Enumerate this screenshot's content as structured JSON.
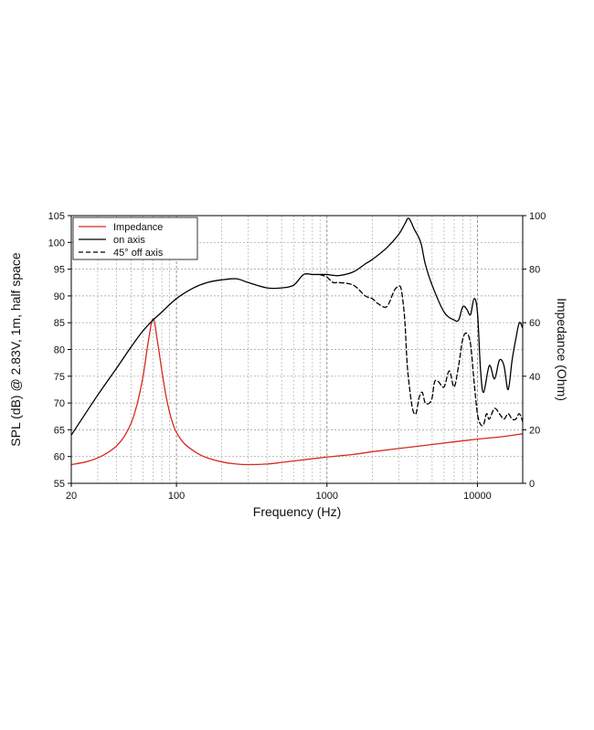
{
  "chart_data": {
    "type": "line",
    "xscale": "log",
    "xlabel": "Frequency (Hz)",
    "ylabel_left": "SPL (dB) @ 2.83V, 1m, half space",
    "ylabel_right": "Impedance (Ohm)",
    "xlim": [
      20,
      20000
    ],
    "ylim_left": [
      55,
      105
    ],
    "ylim_right": [
      0,
      100
    ],
    "x_ticks": [
      20,
      100,
      1000,
      10000
    ],
    "x_tick_labels": [
      "20",
      "100",
      "1000",
      "10000"
    ],
    "y_left_ticks": [
      "55",
      "60",
      "65",
      "70",
      "75",
      "80",
      "85",
      "90",
      "95",
      "100",
      "105"
    ],
    "y_right_ticks": [
      "0",
      "20",
      "40",
      "60",
      "80",
      "100"
    ],
    "grid": true,
    "legend": [
      {
        "label": "Impedance",
        "color": "#d42a1e",
        "dash": "solid"
      },
      {
        "label": "on axis",
        "color": "#000000",
        "dash": "solid"
      },
      {
        "label": "45° off axis",
        "color": "#000000",
        "dash": "dashed"
      }
    ],
    "series": [
      {
        "name": "Impedance",
        "axis": "right",
        "color": "#d42a1e",
        "x": [
          20,
          25,
          30,
          35,
          40,
          45,
          50,
          55,
          60,
          65,
          70,
          75,
          80,
          85,
          90,
          95,
          100,
          110,
          120,
          140,
          160,
          200,
          250,
          300,
          400,
          500,
          700,
          1000,
          1500,
          2000,
          3000,
          5000,
          7000,
          10000,
          15000,
          20000
        ],
        "y": [
          7.0,
          8.0,
          9.5,
          11.5,
          14.0,
          17.5,
          22.5,
          30.0,
          40.0,
          53.0,
          61.5,
          52.5,
          42.0,
          33.0,
          26.5,
          22.0,
          19.0,
          15.5,
          13.5,
          11.0,
          9.5,
          8.0,
          7.2,
          7.0,
          7.2,
          7.8,
          8.8,
          9.8,
          10.8,
          11.8,
          13.0,
          14.5,
          15.5,
          16.5,
          17.5,
          18.5
        ]
      },
      {
        "name": "on axis",
        "axis": "left",
        "color": "#000000",
        "x": [
          20,
          30,
          40,
          50,
          60,
          70,
          80,
          100,
          130,
          160,
          200,
          250,
          300,
          400,
          500,
          600,
          700,
          800,
          900,
          1000,
          1200,
          1500,
          1800,
          2000,
          2500,
          3000,
          3300,
          3500,
          3800,
          4200,
          4500,
          5000,
          6000,
          7000,
          7500,
          8000,
          8500,
          9000,
          9500,
          10000,
          10500,
          11000,
          12000,
          13000,
          14000,
          15000,
          16000,
          17000,
          18000,
          19000,
          20000
        ],
        "y": [
          64,
          71.5,
          76.5,
          80.5,
          83.5,
          85.5,
          87,
          89.5,
          91.5,
          92.5,
          93,
          93.2,
          92.5,
          91.5,
          91.5,
          92,
          94,
          94,
          94,
          94,
          93.8,
          94.5,
          96,
          96.8,
          99,
          101.5,
          103.5,
          104.5,
          102.5,
          100,
          96,
          92,
          87,
          85.5,
          85.5,
          88,
          87.5,
          86.5,
          89.5,
          87,
          76,
          72,
          77,
          74.5,
          78,
          77,
          72.5,
          78,
          82,
          85,
          84
        ]
      },
      {
        "name": "45° off axis",
        "axis": "left",
        "color": "#000000",
        "x": [
          900,
          1000,
          1100,
          1200,
          1500,
          1800,
          2000,
          2200,
          2500,
          2800,
          3000,
          3100,
          3200,
          3300,
          3400,
          3500,
          3700,
          3900,
          4100,
          4300,
          4500,
          4800,
          5000,
          5200,
          5500,
          6000,
          6500,
          7000,
          7500,
          8000,
          8500,
          9000,
          9500,
          10000,
          10500,
          11000,
          11500,
          12000,
          13000,
          14000,
          15000,
          16000,
          17000,
          18000,
          19000,
          20000
        ],
        "y": [
          94,
          93.5,
          92.5,
          92.5,
          92,
          90,
          89.5,
          88.5,
          88,
          91,
          91.8,
          91.5,
          89,
          85,
          78,
          74,
          69,
          68,
          71,
          72,
          70,
          70,
          71,
          74,
          74,
          73,
          76,
          73,
          77,
          82,
          83,
          81,
          74,
          68,
          66,
          66,
          68,
          67,
          69,
          68,
          67,
          68,
          67,
          67,
          68,
          66.5
        ]
      }
    ]
  }
}
